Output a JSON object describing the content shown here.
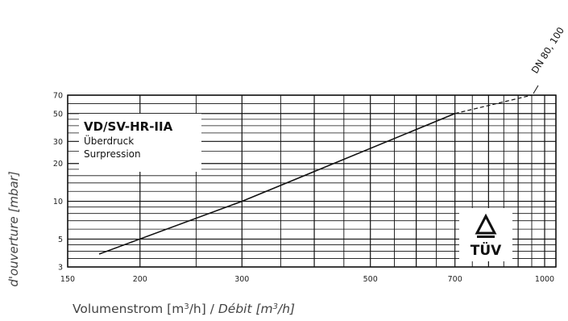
{
  "chart_data": {
    "type": "line",
    "title": "VD/SV-HR-IIA",
    "subtitle": [
      "Überdruck",
      "Surpression"
    ],
    "xlabel": "Volumenstrom [m³/h] / Débit [m³/h]",
    "xlabel_parts": {
      "de_prefix": "Volumenstrom [m",
      "de_sup": "3",
      "de_suffix": "/h] / ",
      "fr_prefix": "Débit [m",
      "fr_sup": "3",
      "fr_suffix": "/h]"
    },
    "ylabel": "d'ouverture [mbar]",
    "x_scale": "log",
    "y_scale": "log",
    "xlim": [
      150,
      1000
    ],
    "ylim": [
      3,
      70
    ],
    "x_ticks": [
      150,
      200,
      300,
      500,
      700,
      1000
    ],
    "y_ticks": [
      3,
      5,
      10,
      20,
      30,
      50,
      70
    ],
    "series": [
      {
        "name": "DN 80, 100",
        "points": [
          [
            170,
            3.8
          ],
          [
            300,
            10.0
          ],
          [
            700,
            50.0
          ]
        ],
        "extension_dashed": [
          [
            700,
            50.0
          ],
          [
            950,
            70.0
          ]
        ]
      }
    ],
    "grid": true,
    "logo": "TÜV"
  }
}
